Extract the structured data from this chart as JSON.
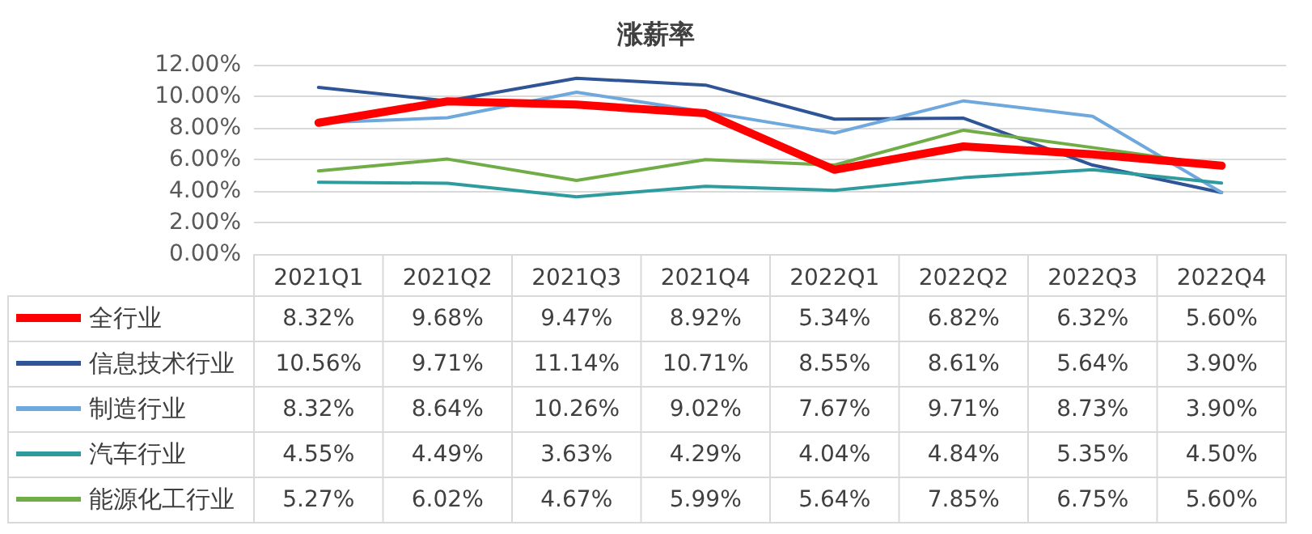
{
  "chart_data": {
    "type": "line",
    "title": "涨薪率",
    "categories": [
      "2021Q1",
      "2021Q2",
      "2021Q3",
      "2021Q4",
      "2022Q1",
      "2022Q2",
      "2022Q3",
      "2022Q4"
    ],
    "ylim": [
      0,
      12
    ],
    "yticks": [
      {
        "value": 0,
        "label": "0.00%"
      },
      {
        "value": 2,
        "label": "2.00%"
      },
      {
        "value": 4,
        "label": "4.00%"
      },
      {
        "value": 6,
        "label": "6.00%"
      },
      {
        "value": 8,
        "label": "8.00%"
      },
      {
        "value": 10,
        "label": "10.00%"
      },
      {
        "value": 12,
        "label": "12.00%"
      }
    ],
    "grid": "y",
    "marker": "none",
    "line_style": "solid",
    "legend": "bottom left",
    "series": [
      {
        "name": "全行业",
        "color": "#ff0000",
        "values": [
          8.32,
          9.68,
          9.47,
          8.92,
          5.34,
          6.82,
          6.32,
          5.6
        ],
        "value_labels": [
          "8.32%",
          "9.68%",
          "9.47%",
          "8.92%",
          "5.34%",
          "6.82%",
          "6.32%",
          "5.60%"
        ]
      },
      {
        "name": "信息技术行业",
        "color": "#2f5597",
        "values": [
          10.56,
          9.71,
          11.14,
          10.71,
          8.55,
          8.61,
          5.64,
          3.9
        ],
        "value_labels": [
          "10.56%",
          "9.71%",
          "11.14%",
          "10.71%",
          "8.55%",
          "8.61%",
          "5.64%",
          "3.90%"
        ]
      },
      {
        "name": "制造行业",
        "color": "#6fa8dc",
        "values": [
          8.32,
          8.64,
          10.26,
          9.02,
          7.67,
          9.71,
          8.73,
          3.9
        ],
        "value_labels": [
          "8.32%",
          "8.64%",
          "10.26%",
          "9.02%",
          "7.67%",
          "9.71%",
          "8.73%",
          "3.90%"
        ]
      },
      {
        "name": "汽车行业",
        "color": "#2e9c9e",
        "values": [
          4.55,
          4.49,
          3.63,
          4.29,
          4.04,
          4.84,
          5.35,
          4.5
        ],
        "value_labels": [
          "4.55%",
          "4.49%",
          "3.63%",
          "4.29%",
          "4.04%",
          "4.84%",
          "5.35%",
          "4.50%"
        ]
      },
      {
        "name": "能源化工行业",
        "color": "#70ad47",
        "values": [
          5.27,
          6.02,
          4.67,
          5.99,
          5.64,
          7.85,
          6.75,
          5.6
        ],
        "value_labels": [
          "5.27%",
          "6.02%",
          "4.67%",
          "5.99%",
          "5.64%",
          "7.85%",
          "6.75%",
          "5.60%"
        ]
      }
    ]
  }
}
